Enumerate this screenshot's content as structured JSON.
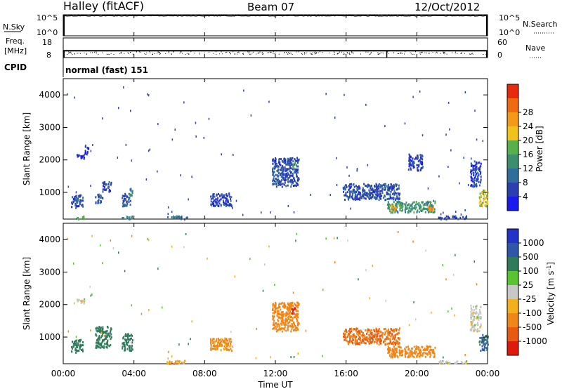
{
  "header": {
    "station": "Halley (fitACF)",
    "beam": "Beam 07",
    "date": "12/Oct/2012"
  },
  "nsky_panel": {
    "left_label": "N.Sky",
    "left_ticks": [
      "10^5",
      "10^0"
    ],
    "right_label": "N.Search",
    "right_ticks": [
      "10^5",
      "10^0"
    ]
  },
  "freq_panel": {
    "left_label_1": "Freq.",
    "left_label_2": "[MHz]",
    "left_ticks": [
      "18",
      "8"
    ],
    "right_label": "Nave",
    "right_ticks": [
      "60",
      "0"
    ]
  },
  "cpid": {
    "label": "CPID",
    "mode": "normal (fast) 151"
  },
  "x_axis": {
    "ticks": [
      "00:00",
      "04:00",
      "08:00",
      "12:00",
      "16:00",
      "20:00",
      "00:00"
    ],
    "label": "Time UT"
  },
  "colors": {
    "power_scale": [
      "#1a1aee",
      "#2b3fb0",
      "#2f6e9a",
      "#3b8f6e",
      "#58b04a",
      "#f2c21c",
      "#f49a18",
      "#f06a10",
      "#e82a0c"
    ],
    "velocity_scale": [
      "#2332c8",
      "#2f56a8",
      "#2f7a5a",
      "#58c430",
      "#c8c8c8",
      "#f2b01c",
      "#f08618",
      "#e85a10",
      "#e01a0a"
    ]
  },
  "chart_data": [
    {
      "type": "line",
      "name": "search-noise",
      "x_unit": "hours UT",
      "y_unit": "log10 noise",
      "xlim": [
        0,
        24
      ],
      "ylim": [
        0,
        5
      ],
      "series": [
        {
          "values_sky": [
            [
              0,
              4.8
            ],
            [
              3,
              4.85
            ],
            [
              6,
              4.9
            ],
            [
              9,
              4.9
            ],
            [
              12,
              4.85
            ],
            [
              15,
              4.85
            ],
            [
              18,
              4.8
            ],
            [
              21,
              4.85
            ],
            [
              24,
              4.8
            ]
          ]
        }
      ]
    },
    {
      "type": "line",
      "name": "frequency-nave",
      "xlim": [
        0,
        24
      ],
      "freq_ylim": [
        8,
        18
      ],
      "nave_ylim": [
        0,
        60
      ],
      "freq_values": [
        [
          0,
          11.5
        ],
        [
          6,
          11.5
        ],
        [
          12,
          11.5
        ],
        [
          18,
          11.5
        ],
        [
          24,
          11.5
        ]
      ],
      "nave_values": [
        [
          0,
          38
        ],
        [
          6,
          38
        ],
        [
          12,
          38
        ],
        [
          18,
          37
        ],
        [
          24,
          38
        ]
      ]
    },
    {
      "type": "heatmap",
      "name": "power",
      "ylabel": "Slant Range [km]",
      "y_ticks": [
        1000,
        2000,
        3000,
        4000
      ],
      "ylim": [
        180,
        4500
      ],
      "xlim": [
        0,
        24
      ],
      "colorbar": {
        "label": "Power [dB]",
        "ticks": [
          "4",
          "8",
          "12",
          "16",
          "20",
          "24",
          "28"
        ],
        "range": [
          0,
          30
        ]
      },
      "patches": [
        {
          "t": [
            0.4,
            1.1
          ],
          "r": [
            550,
            950
          ],
          "db": 6
        },
        {
          "t": [
            0.7,
            1.2
          ],
          "r": [
            2050,
            2200
          ],
          "db": 4
        },
        {
          "t": [
            1.2,
            1.4
          ],
          "r": [
            2200,
            2500
          ],
          "db": 4
        },
        {
          "t": [
            1.8,
            2.2
          ],
          "r": [
            700,
            1000
          ],
          "db": 6
        },
        {
          "t": [
            2.2,
            2.7
          ],
          "r": [
            1050,
            1350
          ],
          "db": 6
        },
        {
          "t": [
            3.3,
            3.8
          ],
          "r": [
            600,
            1000
          ],
          "db": 7
        },
        {
          "t": [
            3.7,
            3.9
          ],
          "r": [
            850,
            1150
          ],
          "db": 10
        },
        {
          "t": [
            3.3,
            3.9
          ],
          "r": [
            200,
            300
          ],
          "db": 12
        },
        {
          "t": [
            0.7,
            1.2
          ],
          "r": [
            200,
            300
          ],
          "db": 14
        },
        {
          "t": [
            5.8,
            7.0
          ],
          "r": [
            200,
            300
          ],
          "db": 8
        },
        {
          "t": [
            8.3,
            9.5
          ],
          "r": [
            600,
            1000
          ],
          "db": 5
        },
        {
          "t": [
            11.8,
            13.3
          ],
          "r": [
            1200,
            2100
          ],
          "db": 6
        },
        {
          "t": [
            12.9,
            13.1
          ],
          "r": [
            1800,
            1950
          ],
          "db": 14
        },
        {
          "t": [
            15.8,
            19.0
          ],
          "r": [
            800,
            1300
          ],
          "db": 6
        },
        {
          "t": [
            18.3,
            21.0
          ],
          "r": [
            400,
            750
          ],
          "db": 12
        },
        {
          "t": [
            18.5,
            18.8
          ],
          "r": [
            450,
            650
          ],
          "db": 20
        },
        {
          "t": [
            20.6,
            20.9
          ],
          "r": [
            450,
            650
          ],
          "db": 24
        },
        {
          "t": [
            19.5,
            20.3
          ],
          "r": [
            1700,
            2200
          ],
          "db": 5
        },
        {
          "t": [
            21.2,
            22.8
          ],
          "r": [
            200,
            300
          ],
          "db": 5
        },
        {
          "t": [
            23.0,
            23.6
          ],
          "r": [
            1200,
            2000
          ],
          "db": 5
        },
        {
          "t": [
            23.5,
            24.0
          ],
          "r": [
            600,
            1100
          ],
          "db": 18
        }
      ]
    },
    {
      "type": "heatmap",
      "name": "velocity",
      "ylabel": "Slant Range [km]",
      "y_ticks": [
        1000,
        2000,
        3000,
        4000
      ],
      "ylim": [
        180,
        4500
      ],
      "xlim": [
        0,
        24
      ],
      "colorbar": {
        "label": "Velocity [m s-1]",
        "ticks": [
          "1000",
          "500",
          "100",
          "25",
          "-25",
          "-100",
          "-500",
          "-1000"
        ]
      },
      "patches": [
        {
          "t": [
            0.4,
            1.1
          ],
          "r": [
            550,
            950
          ],
          "v": 200
        },
        {
          "t": [
            0.7,
            1.2
          ],
          "r": [
            2050,
            2200
          ],
          "v": 0
        },
        {
          "t": [
            1.8,
            2.7
          ],
          "r": [
            700,
            1350
          ],
          "v": 200
        },
        {
          "t": [
            3.3,
            3.9
          ],
          "r": [
            600,
            1150
          ],
          "v": 200
        },
        {
          "t": [
            5.8,
            7.0
          ],
          "r": [
            200,
            300
          ],
          "v": -60
        },
        {
          "t": [
            8.3,
            9.5
          ],
          "r": [
            600,
            1000
          ],
          "v": -80
        },
        {
          "t": [
            11.8,
            13.3
          ],
          "r": [
            1200,
            2100
          ],
          "v": -200
        },
        {
          "t": [
            12.9,
            13.1
          ],
          "r": [
            1750,
            1950
          ],
          "v": -900
        },
        {
          "t": [
            15.8,
            19.0
          ],
          "r": [
            800,
            1300
          ],
          "v": -300
        },
        {
          "t": [
            18.3,
            21.0
          ],
          "r": [
            400,
            750
          ],
          "v": -150
        },
        {
          "t": [
            21.2,
            22.8
          ],
          "r": [
            200,
            300
          ],
          "v": 0
        },
        {
          "t": [
            23.0,
            23.6
          ],
          "r": [
            1200,
            2000
          ],
          "v": 0
        },
        {
          "t": [
            23.5,
            24.0
          ],
          "r": [
            600,
            1100
          ],
          "v": 300
        }
      ]
    }
  ]
}
